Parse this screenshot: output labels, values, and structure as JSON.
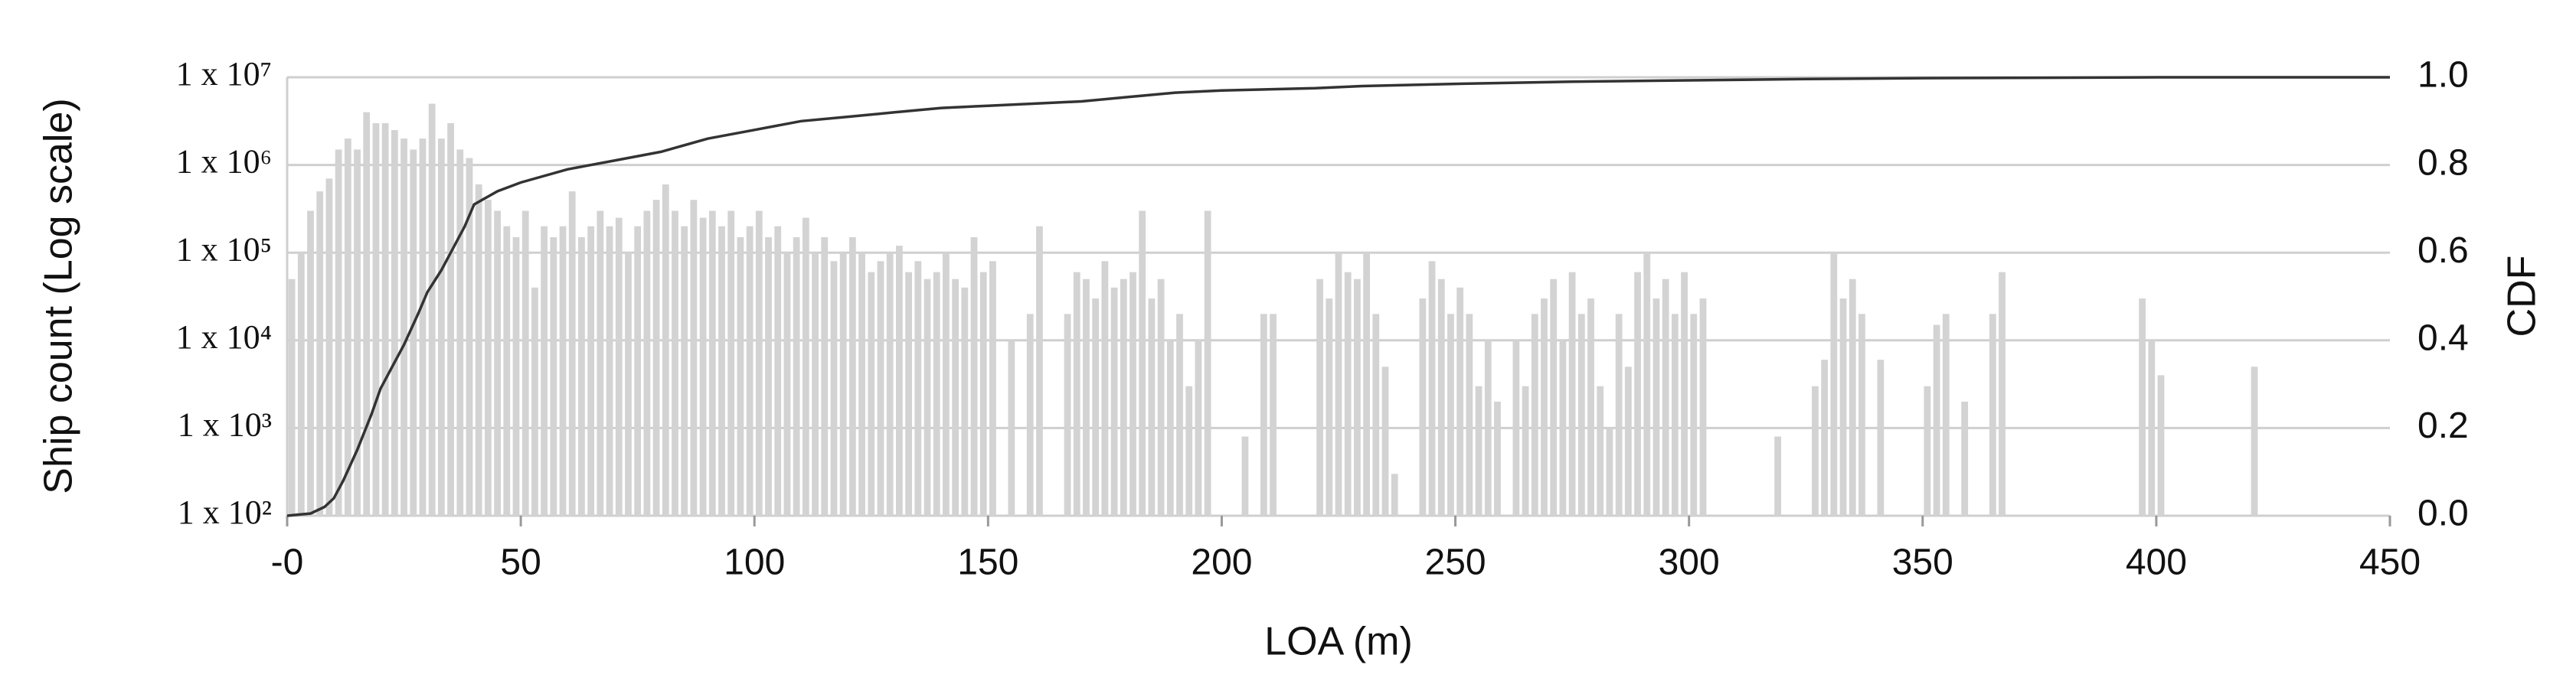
{
  "chart_data": {
    "type": "histogram",
    "xlabel": "LOA (m)",
    "ylabel": "Ship count (Log scale)",
    "y2label": "CDF",
    "color": "#d3d3d3",
    "log_y": true,
    "grid": true,
    "xlim": [
      0,
      450
    ],
    "xticks": [
      {
        "value": 0,
        "label": "-0"
      },
      50,
      100,
      150,
      200,
      250,
      300,
      350,
      400,
      450
    ],
    "ylim": [
      100,
      10000000
    ],
    "yticks": [
      {
        "value": 100,
        "label": "1 x 10²"
      },
      {
        "value": 1000,
        "label": "1 x 10³"
      },
      {
        "value": 10000,
        "label": "1 x 10⁴"
      },
      {
        "value": 100000,
        "label": "1 x 10⁵"
      },
      {
        "value": 1000000,
        "label": "1 x 10⁶"
      },
      {
        "value": 10000000,
        "label": "1 x 10⁷"
      }
    ],
    "y2lim": [
      0,
      1
    ],
    "y2ticks": [
      {
        "value": 0,
        "label": "0.0"
      },
      {
        "value": 0.2,
        "label": "0.2"
      },
      {
        "value": 0.4,
        "label": "0.4"
      },
      {
        "value": 0.6,
        "label": "0.6"
      },
      {
        "value": 0.8,
        "label": "0.8"
      },
      {
        "value": 1,
        "label": "1.0"
      }
    ],
    "bins": [
      0,
      2,
      4,
      6,
      8,
      10,
      12,
      14,
      16,
      18,
      20,
      22,
      24,
      26,
      28,
      30,
      32,
      34,
      36,
      38,
      40,
      42,
      44,
      46,
      48,
      50,
      52,
      54,
      56,
      58,
      60,
      62,
      64,
      66,
      68,
      70,
      72,
      74,
      76,
      78,
      80,
      82,
      84,
      86,
      88,
      90,
      92,
      94,
      96,
      98,
      100,
      102,
      104,
      106,
      108,
      110,
      112,
      114,
      116,
      118,
      120,
      122,
      124,
      126,
      128,
      130,
      132,
      134,
      136,
      138,
      140,
      142,
      144,
      146,
      148,
      150,
      152,
      154,
      156,
      158,
      160,
      162,
      164,
      166,
      168,
      170,
      172,
      174,
      176,
      178,
      180,
      182,
      184,
      186,
      188,
      190,
      192,
      194,
      196,
      198,
      200,
      202,
      204,
      206,
      208,
      210,
      212,
      214,
      216,
      218,
      220,
      222,
      224,
      226,
      228,
      230,
      232,
      234,
      236,
      238,
      240,
      242,
      244,
      246,
      248,
      250,
      252,
      254,
      256,
      258,
      260,
      262,
      264,
      266,
      268,
      270,
      272,
      274,
      276,
      278,
      280,
      282,
      284,
      286,
      288,
      290,
      292,
      294,
      296,
      298,
      300,
      302,
      304,
      306,
      308,
      310,
      312,
      314,
      316,
      318,
      320,
      322,
      324,
      326,
      328,
      330,
      332,
      334,
      336,
      338,
      340,
      342,
      344,
      346,
      348,
      350,
      352,
      354,
      356,
      358,
      360,
      362,
      364,
      366,
      368,
      370,
      372,
      374,
      376,
      378,
      380,
      382,
      384,
      386,
      388,
      390,
      392,
      394,
      396,
      398,
      400,
      402,
      404,
      406,
      408,
      410,
      412,
      414,
      416,
      418,
      420,
      422
    ],
    "values": [
      50000,
      100000,
      300000,
      500000,
      700000,
      1500000,
      2000000,
      1500000,
      4000000,
      3000000,
      3000000,
      2500000,
      2000000,
      1500000,
      2000000,
      5000000,
      2000000,
      3000000,
      1500000,
      1200000,
      600000,
      400000,
      300000,
      200000,
      150000,
      300000,
      40000,
      200000,
      150000,
      200000,
      500000,
      150000,
      200000,
      300000,
      200000,
      250000,
      100000,
      200000,
      300000,
      400000,
      600000,
      300000,
      200000,
      400000,
      250000,
      300000,
      200000,
      300000,
      150000,
      200000,
      300000,
      150000,
      200000,
      100000,
      150000,
      250000,
      100000,
      150000,
      80000,
      100000,
      150000,
      100000,
      60000,
      80000,
      100000,
      120000,
      60000,
      80000,
      50000,
      60000,
      100000,
      50000,
      40000,
      150000,
      60000,
      80000,
      0,
      10000,
      0,
      20000,
      200000,
      0,
      0,
      20000,
      60000,
      50000,
      30000,
      80000,
      40000,
      50000,
      60000,
      300000,
      30000,
      50000,
      10000,
      20000,
      3000,
      10000,
      300000,
      0,
      0,
      0,
      800,
      0,
      20000,
      20000,
      0,
      0,
      0,
      0,
      50000,
      30000,
      100000,
      60000,
      50000,
      100000,
      20000,
      5000,
      300,
      0,
      0,
      30000,
      80000,
      50000,
      20000,
      40000,
      20000,
      3000,
      10000,
      2000,
      0,
      10000,
      3000,
      20000,
      30000,
      50000,
      10000,
      60000,
      20000,
      30000,
      3000,
      1000,
      20000,
      5000,
      60000,
      100000,
      30000,
      50000,
      20000,
      60000,
      20000,
      30000,
      0,
      0,
      0,
      0,
      0,
      0,
      0,
      800,
      0,
      0,
      0,
      3000,
      6000,
      100000,
      30000,
      50000,
      20000,
      0,
      6000,
      0,
      0,
      0,
      0,
      3000,
      15000,
      20000,
      0,
      2000,
      0,
      0,
      20000,
      60000,
      0,
      0,
      0,
      0,
      0,
      0,
      0,
      0,
      0,
      0,
      0,
      0,
      0,
      0,
      30000,
      10000,
      4000,
      0,
      0,
      0,
      0,
      0,
      0,
      0,
      0,
      0,
      5000
    ],
    "series": [
      {
        "type": "line",
        "axis": "y2",
        "color": "#333333",
        "x": [
          0,
          5,
          8,
          10,
          12,
          15,
          18,
          20,
          22,
          25,
          28,
          30,
          33,
          35,
          38,
          40,
          45,
          50,
          60,
          70,
          80,
          90,
          100,
          110,
          120,
          130,
          140,
          150,
          160,
          170,
          180,
          190,
          200,
          220,
          230,
          250,
          275,
          300,
          325,
          350,
          375,
          400,
          425,
          450
        ],
        "values": [
          0,
          0.005,
          0.02,
          0.04,
          0.08,
          0.15,
          0.23,
          0.29,
          0.33,
          0.39,
          0.46,
          0.51,
          0.56,
          0.6,
          0.66,
          0.71,
          0.74,
          0.76,
          0.79,
          0.81,
          0.83,
          0.86,
          0.88,
          0.9,
          0.91,
          0.92,
          0.93,
          0.935,
          0.94,
          0.945,
          0.955,
          0.965,
          0.97,
          0.975,
          0.98,
          0.985,
          0.99,
          0.993,
          0.996,
          0.998,
          0.999,
          1.0,
          1.0,
          1.0
        ]
      }
    ]
  }
}
